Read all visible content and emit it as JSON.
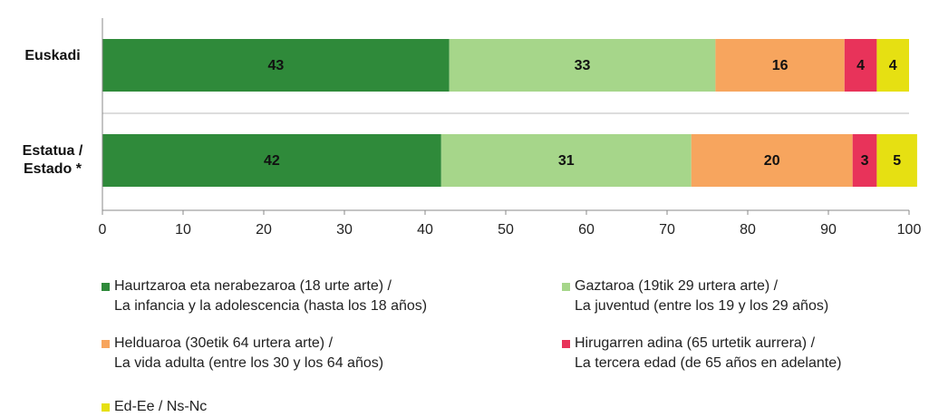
{
  "chart_data": {
    "type": "stacked_bar_horizontal",
    "categories": [
      "Euskadi",
      "Estatua /\nEstado *"
    ],
    "series": [
      {
        "name": "Haurtzaroa eta nerabezaroa (18 urte arte) /\nLa infancia y la adolescencia (hasta los 18 años)",
        "color": "#2f8a3a",
        "values": [
          43,
          42
        ]
      },
      {
        "name": "Gaztaroa (19tik 29 urtera arte) /\nLa juventud (entre los 19 y los 29 años)",
        "color": "#a6d68a",
        "values": [
          33,
          31
        ]
      },
      {
        "name": "Helduaroa (30etik 64 urtera arte) /\nLa vida adulta (entre los 30 y los 64 años)",
        "color": "#f7a55e",
        "values": [
          16,
          20
        ]
      },
      {
        "name": "Hirugarren adina (65 urtetik aurrera) /\nLa tercera edad (de 65 años en adelante)",
        "color": "#e8335a",
        "values": [
          4,
          3
        ]
      },
      {
        "name": "Ed-Ee / Ns-Nc",
        "color": "#e6e012",
        "values": [
          4,
          5
        ]
      }
    ],
    "xlim": [
      0,
      100
    ],
    "xticks": [
      0,
      10,
      20,
      30,
      40,
      50,
      60,
      70,
      80,
      90,
      100
    ]
  }
}
